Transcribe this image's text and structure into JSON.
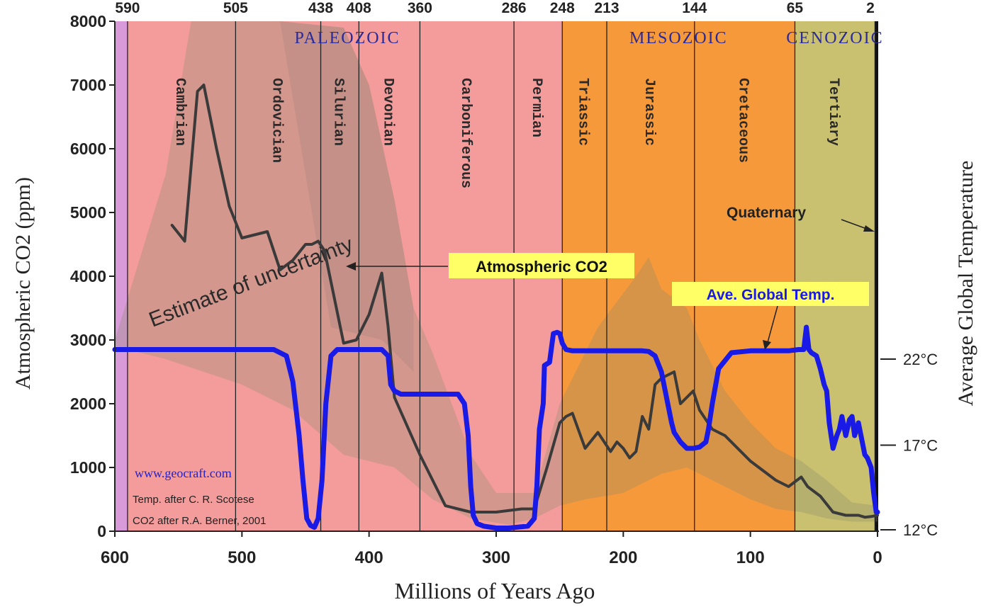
{
  "chart_data": {
    "type": "line",
    "xlabel": "Millions of Years Ago",
    "ylabel": "Atmospheric CO2 (ppm)",
    "y2label": "Average Global Temperature",
    "xlim": [
      600,
      0
    ],
    "ylim": [
      0,
      8000
    ],
    "x_ticks": [
      600,
      500,
      400,
      300,
      200,
      100,
      0
    ],
    "y_ticks": [
      0,
      1000,
      2000,
      3000,
      4000,
      5000,
      6000,
      7000,
      8000
    ],
    "y2_ticks": [
      {
        "label": "12°C",
        "co2": 0
      },
      {
        "label": "17°C",
        "co2": 1350
      },
      {
        "label": "22°C",
        "co2": 2700
      }
    ],
    "top_ticks": [
      590,
      505,
      438,
      408,
      360,
      286,
      248,
      213,
      144,
      65,
      2
    ],
    "eras": [
      {
        "name": "PALEOZOIC",
        "from": 590,
        "to": 248,
        "color": "#f49c9c"
      },
      {
        "name": "MESOZOIC",
        "from": 248,
        "to": 65,
        "color": "#f6993b"
      },
      {
        "name": "CENOZOIC",
        "from": 65,
        "to": 2,
        "color": "#c9c170"
      }
    ],
    "precambrian_color": "#d99ad9",
    "periods": [
      {
        "name": "Cambrian",
        "from": 590,
        "to": 505
      },
      {
        "name": "Ordovician",
        "from": 505,
        "to": 438
      },
      {
        "name": "Silurian",
        "from": 438,
        "to": 408
      },
      {
        "name": "Devonian",
        "from": 408,
        "to": 360
      },
      {
        "name": "Carboniferous",
        "from": 360,
        "to": 286
      },
      {
        "name": "Permian",
        "from": 286,
        "to": 248
      },
      {
        "name": "Triassic",
        "from": 248,
        "to": 213
      },
      {
        "name": "Jurassic",
        "from": 213,
        "to": 144
      },
      {
        "name": "Cretaceous",
        "from": 144,
        "to": 65
      },
      {
        "name": "Tertiary",
        "from": 65,
        "to": 2
      }
    ],
    "series": [
      {
        "name": "Atmospheric CO2",
        "color": "#3a3a3a",
        "x": [
          555,
          545,
          535,
          530,
          520,
          510,
          500,
          480,
          470,
          460,
          450,
          445,
          440,
          435,
          420,
          410,
          400,
          390,
          385,
          380,
          360,
          340,
          320,
          300,
          280,
          270,
          260,
          250,
          245,
          240,
          230,
          220,
          210,
          205,
          200,
          195,
          190,
          185,
          180,
          175,
          170,
          165,
          160,
          155,
          150,
          145,
          140,
          130,
          120,
          100,
          80,
          70,
          60,
          55,
          45,
          35,
          25,
          15,
          10,
          5,
          0
        ],
        "values": [
          4800,
          4550,
          6900,
          7000,
          6000,
          5100,
          4600,
          4700,
          4100,
          4250,
          4500,
          4500,
          4550,
          4400,
          2950,
          3000,
          3400,
          4050,
          3200,
          2100,
          1200,
          400,
          300,
          300,
          350,
          350,
          1000,
          1700,
          1800,
          1850,
          1300,
          1550,
          1250,
          1400,
          1300,
          1150,
          1250,
          1800,
          1600,
          2300,
          2400,
          2450,
          2500,
          2000,
          2100,
          2200,
          1900,
          1600,
          1500,
          1100,
          800,
          700,
          850,
          700,
          550,
          300,
          250,
          250,
          220,
          230,
          250
        ]
      },
      {
        "name": "Ave. Global Temp.",
        "color": "#1a1ae6",
        "x": [
          600,
          500,
          475,
          465,
          460,
          455,
          452,
          449,
          446,
          443,
          440,
          437,
          434,
          430,
          425,
          420,
          410,
          400,
          390,
          385,
          383,
          380,
          375,
          360,
          345,
          330,
          325,
          322,
          320,
          318,
          315,
          310,
          300,
          290,
          275,
          270,
          268,
          266,
          263,
          262,
          258,
          255,
          252,
          250,
          248,
          245,
          240,
          200,
          185,
          180,
          175,
          170,
          165,
          162,
          160,
          155,
          150,
          145,
          140,
          135,
          133,
          130,
          125,
          115,
          100,
          90,
          70,
          62,
          58,
          56,
          54,
          52,
          48,
          45,
          42,
          40,
          38,
          35,
          32,
          30,
          28,
          25,
          22,
          20,
          18,
          15,
          12,
          10,
          8,
          5,
          3,
          1,
          0
        ],
        "values": [
          2850,
          2850,
          2850,
          2750,
          2350,
          1500,
          800,
          200,
          90,
          60,
          200,
          800,
          2000,
          2750,
          2850,
          2850,
          2850,
          2850,
          2850,
          2750,
          2300,
          2200,
          2150,
          2150,
          2150,
          2150,
          2000,
          1500,
          700,
          250,
          120,
          80,
          50,
          50,
          80,
          200,
          700,
          1600,
          2000,
          2600,
          2650,
          3100,
          3120,
          3100,
          2950,
          2850,
          2830,
          2830,
          2830,
          2820,
          2750,
          2500,
          2000,
          1700,
          1550,
          1400,
          1300,
          1300,
          1320,
          1400,
          1600,
          2000,
          2550,
          2800,
          2830,
          2830,
          2830,
          2850,
          2850,
          3200,
          2850,
          2800,
          2750,
          2550,
          2300,
          2200,
          1700,
          1300,
          1500,
          1600,
          1800,
          1500,
          1750,
          1800,
          1500,
          1700,
          1400,
          1200,
          1150,
          1000,
          600,
          300,
          300
        ]
      }
    ],
    "annotations": {
      "co2_label": "Atmospheric CO2",
      "temp_label": "Ave. Global Temp.",
      "uncertainty": "Estimate of uncertainty",
      "quaternary": "Quaternary",
      "website": "www.geocraft.com",
      "credit1": "Temp. after C. R. Scotese",
      "credit2": "CO2 after R.A. Berner, 2001"
    }
  }
}
